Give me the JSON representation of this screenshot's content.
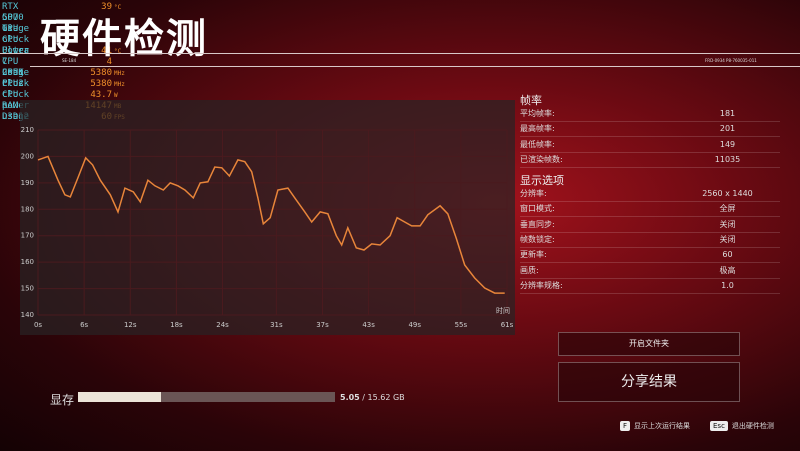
{
  "overlay": {
    "rows": [
      {
        "label": "RTX 5070 Ti",
        "value": "39",
        "unit": "°C"
      },
      {
        "label": "GPU usage"
      },
      {
        "label": "GPU clock"
      },
      {
        "label": "GPU Power"
      },
      {
        "label": "Ultra 7 265K Plus",
        "value": "41",
        "unit": "°C"
      },
      {
        "label": "CPU usage",
        "value": "4"
      },
      {
        "label": "CPU1 clock",
        "value": "5380",
        "unit": "MHz"
      },
      {
        "label": "CPU2 clock",
        "value": "5380",
        "unit": "MHz"
      },
      {
        "label": "CPU power",
        "value": "43.7",
        "unit": "W"
      },
      {
        "label": "RAM usage",
        "value": "14147",
        "unit": "MB"
      },
      {
        "label": "D3D12",
        "value": "60",
        "unit": "FPS"
      }
    ]
  },
  "header": {
    "title": "硬件检测",
    "code_left": "SE-184",
    "code_right": "FRD-0934 P8-760035-011"
  },
  "chart": {
    "type": "line",
    "x_label": "时间",
    "x": [
      0,
      1.3,
      2.6,
      3.5,
      4.2,
      5.2,
      6.2,
      7.1,
      8.1,
      9.4,
      10.4,
      11.3,
      12.4,
      13.3,
      14.3,
      15.2,
      16.3,
      17.2,
      18.2,
      19.1,
      20.2,
      21.1,
      22.1,
      23.0,
      23.9,
      24.9,
      26.0,
      26.9,
      27.8,
      28.6,
      29.3,
      30.2,
      31.2,
      32.5,
      33.4,
      34.7,
      35.6,
      36.7,
      37.7,
      38.8,
      39.5,
      40.3,
      41.4,
      42.4,
      43.4,
      44.5,
      45.8,
      46.7,
      47.7,
      48.6,
      49.7,
      50.7,
      52.3,
      53.3,
      54.4,
      55.5,
      56.8,
      58.1,
      59.4,
      60.7
    ],
    "values": [
      198.7,
      200,
      191,
      185.5,
      184.7,
      192,
      199.5,
      196.8,
      191,
      185.5,
      179,
      188,
      186.6,
      182.8,
      191,
      188.9,
      187.3,
      190,
      188.9,
      187.3,
      184.3,
      190,
      190.4,
      196,
      195.7,
      192.6,
      198.7,
      198,
      194.2,
      184.3,
      174.5,
      176.8,
      187.3,
      188,
      184.3,
      179,
      175.2,
      179,
      178.3,
      170,
      166.5,
      173,
      165.4,
      164.6,
      166.9,
      166.5,
      170,
      176.8,
      175.2,
      173.7,
      173.7,
      177.9,
      181.3,
      178.3,
      169,
      158.9,
      154,
      150.2,
      148.3,
      148.3
    ],
    "color": "#e8853a",
    "xlim": [
      0,
      61
    ],
    "ylim": [
      140,
      210
    ],
    "xticks": [
      {
        "value": 0,
        "label": "0s"
      },
      {
        "value": 6,
        "label": "6s"
      },
      {
        "value": 12,
        "label": "12s"
      },
      {
        "value": 18,
        "label": "18s"
      },
      {
        "value": 24,
        "label": "24s"
      },
      {
        "value": 31,
        "label": "31s"
      },
      {
        "value": 37,
        "label": "37s"
      },
      {
        "value": 43,
        "label": "43s"
      },
      {
        "value": 49,
        "label": "49s"
      },
      {
        "value": 55,
        "label": "55s"
      },
      {
        "value": 61,
        "label": "61s"
      }
    ],
    "yticks": [
      140,
      150,
      160,
      170,
      180,
      190,
      200,
      210
    ],
    "grid": true
  },
  "framerate": {
    "title": "帧率",
    "rows": [
      {
        "label": "平均帧率:",
        "value": "181"
      },
      {
        "label": "最高帧率:",
        "value": "201"
      },
      {
        "label": "最低帧率:",
        "value": "149"
      },
      {
        "label": "已渲染帧数:",
        "value": "11035"
      }
    ]
  },
  "display": {
    "title": "显示选项",
    "rows": [
      {
        "label": "分辨率:",
        "value": "2560 x 1440"
      },
      {
        "label": "窗口模式:",
        "value": "全屏"
      },
      {
        "label": "垂直同步:",
        "value": "关闭"
      },
      {
        "label": "帧数锁定:",
        "value": "关闭"
      },
      {
        "label": "更新率:",
        "value": "60"
      },
      {
        "label": "画质:",
        "value": "极高"
      },
      {
        "label": "分辨率规格:",
        "value": "1.0"
      }
    ]
  },
  "buttons": {
    "open_folder": "开启文件夹",
    "share": "分享结果"
  },
  "memory": {
    "label": "显存",
    "used": 5.05,
    "total": 15.62,
    "total_label": "/ 15.62 GB"
  },
  "hints": [
    {
      "key": "F",
      "label": "显示上次运行结果"
    },
    {
      "key": "Esc",
      "label": "退出硬件检测"
    }
  ]
}
